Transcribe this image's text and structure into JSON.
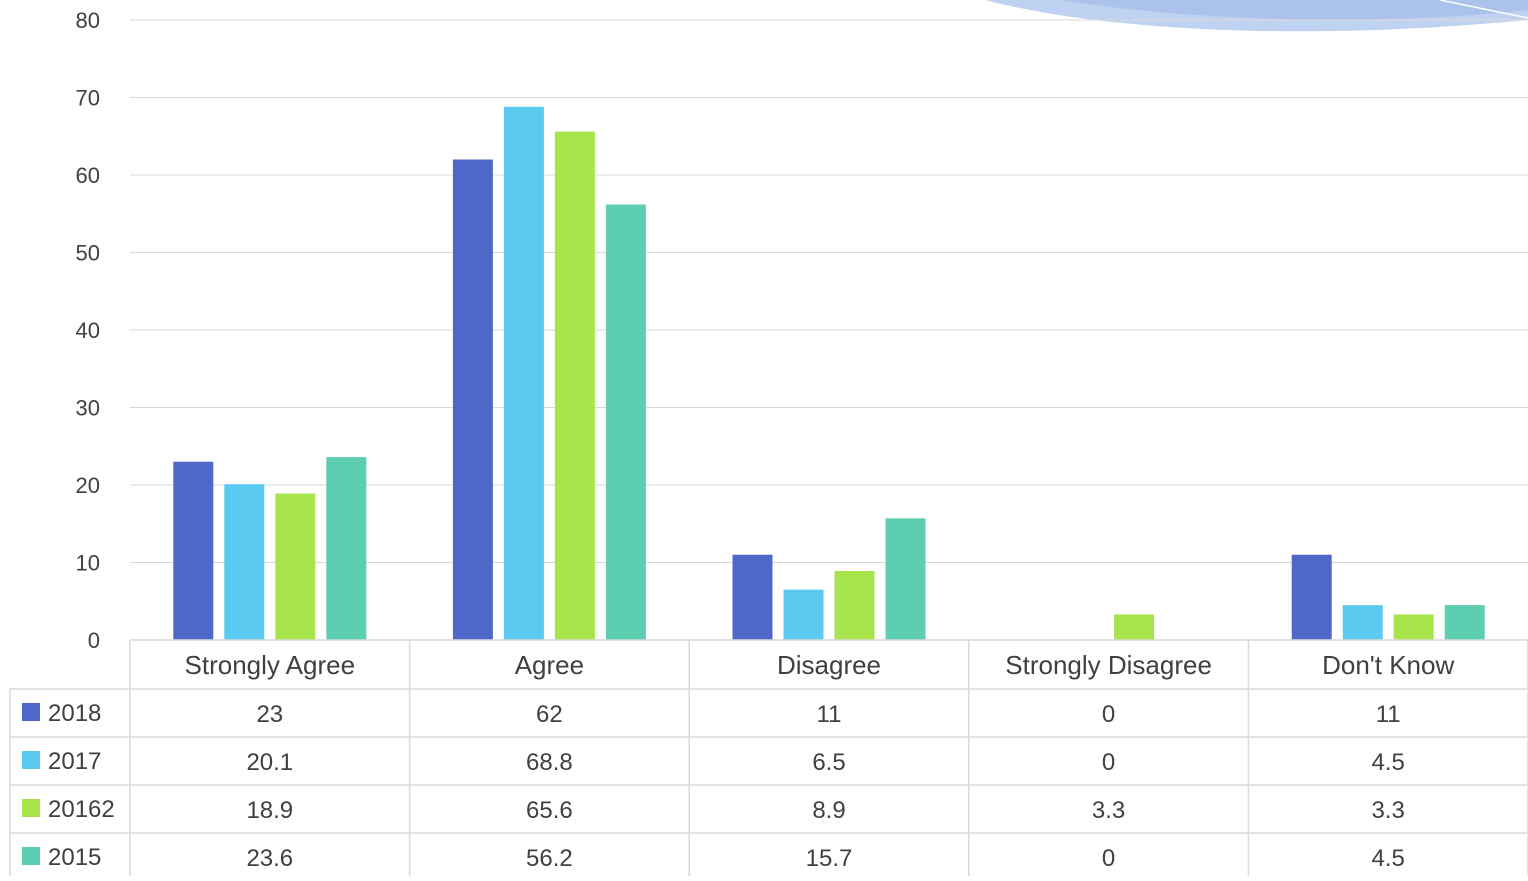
{
  "chart_data": {
    "type": "bar",
    "categories": [
      "Strongly Agree",
      "Agree",
      "Disagree",
      "Strongly Disagree",
      "Don't Know"
    ],
    "series": [
      {
        "name": "2018",
        "color": "#4f67c8",
        "values": [
          23,
          62,
          11,
          0,
          11
        ],
        "labels": [
          "23",
          "62",
          "11",
          "0",
          "11"
        ]
      },
      {
        "name": "2017",
        "color": "#5bcaf0",
        "values": [
          20.1,
          68.8,
          6.5,
          0,
          4.5
        ],
        "labels": [
          "20.1",
          "68.8",
          "6.5",
          "0",
          "4.5"
        ]
      },
      {
        "name": "20162",
        "color": "#a8e44c",
        "values": [
          18.9,
          65.6,
          8.9,
          3.3,
          3.3
        ],
        "labels": [
          "18.9",
          "65.6",
          "8.9",
          "3.3",
          "3.3"
        ]
      },
      {
        "name": "2015",
        "color": "#5dceb0",
        "values": [
          23.6,
          56.2,
          15.7,
          0,
          4.5
        ],
        "labels": [
          "23.6",
          "56.2",
          "15.7",
          "0",
          "4.5"
        ]
      }
    ],
    "yticks": [
      "0",
      "10",
      "20",
      "30",
      "40",
      "50",
      "60",
      "70",
      "80"
    ],
    "ylim": [
      0,
      80
    ],
    "grid": true,
    "legend": "data-table",
    "title": "",
    "xlabel": "",
    "ylabel": ""
  }
}
